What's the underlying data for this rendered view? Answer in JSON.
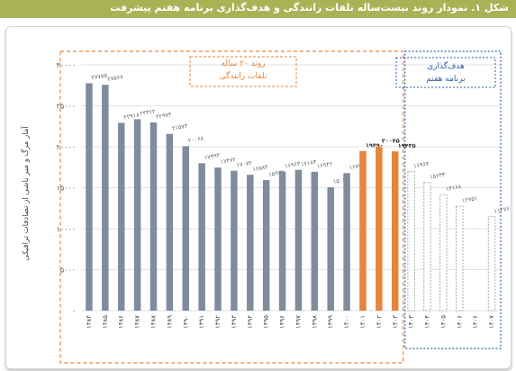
{
  "header": {
    "title": "شکل ۱. نمودار روند بیست‌ساله تلفات رانندگی و هدف‌گذاری برنامه هفتم پیشرفت",
    "bg_color": "#a9b255"
  },
  "chart_data": {
    "type": "bar",
    "ylabel": "آمار مرگ و میر ناشی از تصادفات ترافیکی",
    "ylim": [
      0,
      30000
    ],
    "yticks": [
      0,
      5000,
      10000,
      15000,
      20000,
      25000,
      30000
    ],
    "ytick_labels": [
      "۰",
      "۵۰۰۰",
      "۱۰۰۰۰",
      "۱۵۰۰۰",
      "۲۰۰۰۰",
      "۲۵۰۰۰",
      "۳۰۰۰۰"
    ],
    "grid": true,
    "categories": [
      "۱۳۸۴",
      "۱۳۸۵",
      "۱۳۸۶",
      "۱۳۸۷",
      "۱۳۸۸",
      "۱۳۸۹",
      "۱۳۹۰",
      "۱۳۹۱",
      "۱۳۹۲",
      "۱۳۹۳",
      "۱۳۹۴",
      "۱۳۹۵",
      "۱۳۹۶",
      "۱۳۹۷",
      "۱۳۹۸",
      "۱۳۹۹",
      "۱۴۰۰",
      "۱۴۰۱",
      "۱۴۰۲",
      "۱۴۰۳",
      "۱۴۰۳",
      "۱۴۰۴",
      "۱۴۰۵",
      "۱۴۰۶",
      "۱۴۰۶",
      "۱۴۰۷"
    ],
    "values": [
      27755,
      27567,
      22918,
      23362,
      22974,
      21573,
      20068,
      17993,
      17472,
      17072,
      16584,
      15932,
      16963,
      17183,
      16946,
      15066,
      16778,
      19490,
      20045,
      19435,
      16964,
      15633,
      14168,
      12751,
      11476,
      11476
    ],
    "value_labels": [
      "۲۷۷۵۵",
      "۲۷۵۶۷",
      "۲۲۹۱۸",
      "۲۳۳۶۲",
      "۲۲۹۷۴",
      "۲۱۵۷۳",
      "۲۰۰۶۸",
      "۱۷۹۹۳",
      "۱۷۴۷۲",
      "۱۷۰۷۲",
      "۱۶۵۸۴",
      "۱۵۹۳۲",
      "۱۶۹۶۳",
      "۱۷۱۸۳",
      "۱۶۹۴۶",
      "۱۵۰۶۶",
      "۱۶۷۷۸",
      "۱۹۴۹۰",
      "۲۰۰۴۵",
      "۱۹۴۳۵",
      "۱۶۹۶۴",
      "۱۵۶۳۳",
      "۱۴۱۶۸",
      "۱۲۷۵۱",
      "",
      "۱۱۴۷۶"
    ],
    "bar_styles": [
      "historic",
      "historic",
      "historic",
      "historic",
      "historic",
      "historic",
      "historic",
      "historic",
      "historic",
      "historic",
      "historic",
      "historic",
      "historic",
      "historic",
      "historic",
      "historic",
      "historic",
      "recent",
      "recent",
      "recent",
      "target",
      "target",
      "target",
      "target",
      "none",
      "target"
    ],
    "colors": {
      "historic": "#7e8c9e",
      "recent": "#e6843e",
      "target_edge": "#a8a8a8",
      "grid": "#e2e2e2"
    },
    "annotations": [
      {
        "text": "روند ۲۰ ساله",
        "line2": "تلفات رانندگی",
        "color": "#e6843e"
      },
      {
        "text": "هدف‌گذاری",
        "line2": "برنامه هفتم",
        "color": "#2e5fa6"
      }
    ]
  }
}
